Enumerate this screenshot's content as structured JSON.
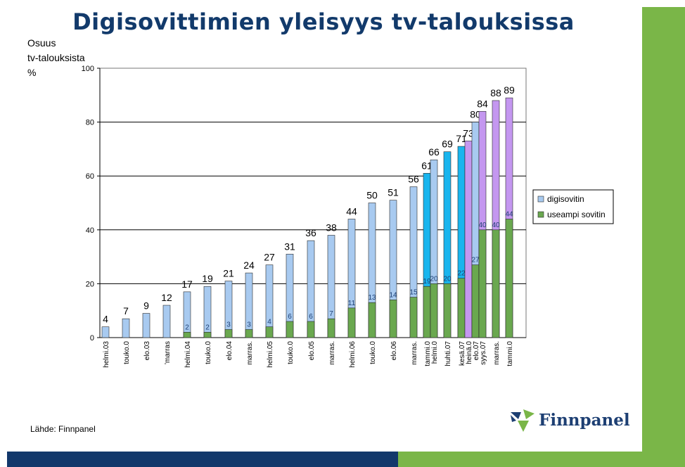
{
  "title": "Digisovittimien yleisyys tv-talouksissa",
  "source": "Lähde: Finnpanel",
  "logo_text": "Finnpanel",
  "colors": {
    "title": "#123a6b",
    "digisovitin": "#a8caf0",
    "digisovitin_bright": "#19b5ee",
    "digisovitin_purple": "#c497f0",
    "useampi": "#6aa84f",
    "logo_blue": "#1d3f73",
    "logo_green": "#7ab648",
    "band_green": "#7ab648",
    "band_navy": "#12386b"
  },
  "chart_data": {
    "type": "bar",
    "ylabel_lines": [
      "Osuus",
      "tv-talouksista",
      "%"
    ],
    "ylim": [
      0,
      100
    ],
    "yticks": [
      0,
      20,
      40,
      60,
      80,
      100
    ],
    "grid": true,
    "legend_position": "right",
    "categories": [
      "helmi.03",
      "touko.0",
      "elo.03",
      "'marras",
      "helmi.04",
      "touko.0",
      "elo.04",
      "marras.",
      "helmi.05",
      "touko.0",
      "elo.05",
      "marras.",
      "helmi.06",
      "touko.0",
      "elo.06",
      "marras.",
      "tammi.0",
      "helmi.0",
      "huhti.07",
      "kesä.07",
      "heinä.0",
      "elo.07",
      "syys.07",
      "marras.",
      "tammi.0"
    ],
    "series": [
      {
        "name": "digisovitin",
        "values": [
          4,
          7,
          9,
          12,
          17,
          19,
          21,
          24,
          27,
          31,
          36,
          38,
          44,
          50,
          51,
          56,
          61,
          66,
          69,
          71,
          73,
          80,
          84,
          88,
          89
        ]
      },
      {
        "name": "useampi sovitin",
        "values": [
          null,
          null,
          null,
          null,
          2,
          2,
          3,
          3,
          4,
          6,
          6,
          7,
          11,
          13,
          14,
          15,
          19,
          20,
          20,
          22,
          null,
          27,
          40,
          40,
          44
        ]
      }
    ],
    "bar_color_groups": [
      "light",
      "light",
      "light",
      "light",
      "light",
      "light",
      "light",
      "light",
      "light",
      "light",
      "light",
      "light",
      "light",
      "light",
      "light",
      "light",
      "bright",
      "light",
      "bright",
      "bright",
      "purple",
      "light",
      "purple",
      "purple",
      "purple"
    ]
  }
}
